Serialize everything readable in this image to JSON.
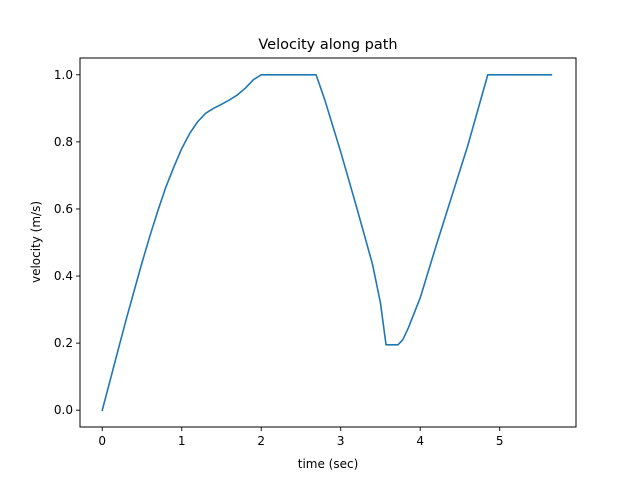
{
  "chart_data": {
    "type": "line",
    "title": "Velocity along path",
    "xlabel": "time (sec)",
    "ylabel": "velocity (m/s)",
    "xlim": [
      -0.28,
      5.96
    ],
    "ylim": [
      -0.05,
      1.05
    ],
    "xticks": [
      0,
      1,
      2,
      3,
      4,
      5
    ],
    "xtick_labels": [
      "0",
      "1",
      "2",
      "3",
      "4",
      "5"
    ],
    "yticks": [
      0.0,
      0.2,
      0.4,
      0.6,
      0.8,
      1.0
    ],
    "ytick_labels": [
      "0.0",
      "0.2",
      "0.4",
      "0.6",
      "0.8",
      "1.0"
    ],
    "grid": false,
    "legend": "none",
    "series": [
      {
        "color": "#1f77b4",
        "x": [
          0,
          0.1,
          0.2,
          0.3,
          0.4,
          0.5,
          0.6,
          0.7,
          0.8,
          0.9,
          1.0,
          1.1,
          1.2,
          1.3,
          1.4,
          1.5,
          1.6,
          1.7,
          1.8,
          1.9,
          2.0,
          2.2,
          2.4,
          2.69,
          2.8,
          3.0,
          3.2,
          3.4,
          3.5,
          3.57,
          3.62,
          3.72,
          3.78,
          3.85,
          4.0,
          4.2,
          4.4,
          4.6,
          4.85,
          5.0,
          5.2,
          5.4,
          5.65
        ],
        "y": [
          0.0,
          0.09,
          0.18,
          0.27,
          0.355,
          0.44,
          0.52,
          0.595,
          0.665,
          0.725,
          0.78,
          0.825,
          0.86,
          0.885,
          0.9,
          0.912,
          0.925,
          0.94,
          0.96,
          0.985,
          1.0,
          1.0,
          1.0,
          1.0,
          0.925,
          0.77,
          0.605,
          0.435,
          0.32,
          0.195,
          0.195,
          0.195,
          0.21,
          0.245,
          0.335,
          0.49,
          0.64,
          0.79,
          1.0,
          1.0,
          1.0,
          1.0,
          1.0
        ]
      }
    ]
  }
}
